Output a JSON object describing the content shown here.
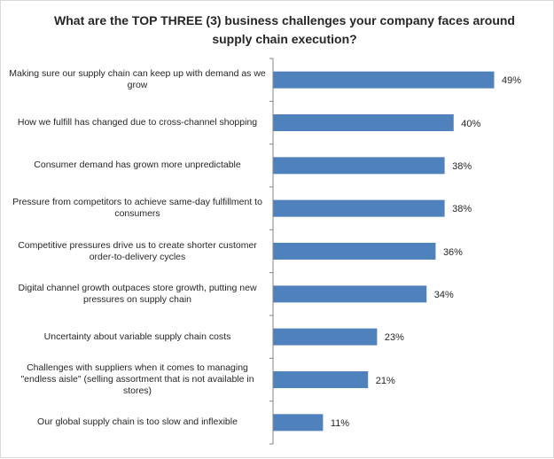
{
  "chart_data": {
    "type": "bar",
    "orientation": "horizontal",
    "title": "What are the TOP THREE (3) business challenges your company faces around supply chain execution?",
    "categories": [
      "Making sure our supply chain can keep up with demand as we grow",
      "How we fulfill has changed due to cross-channel shopping",
      "Consumer demand has grown more unpredictable",
      "Pressure from competitors to achieve same-day fulfillment to consumers",
      "Competitive pressures drive us to create shorter customer order-to-delivery cycles",
      "Digital channel growth outpaces store growth, putting new pressures on supply chain",
      "Uncertainty about variable supply chain costs",
      "Challenges with suppliers when it comes to managing \"endless aisle\" (selling assortment that is not available in stores)",
      "Our global supply chain is too slow and inflexible"
    ],
    "values": [
      49,
      40,
      38,
      38,
      36,
      34,
      23,
      21,
      11
    ],
    "value_labels": [
      "49%",
      "40%",
      "38%",
      "38%",
      "36%",
      "34%",
      "23%",
      "21%",
      "11%"
    ],
    "xlim": [
      0,
      49
    ],
    "bar_color": "#4f81bd",
    "grid": false,
    "legend": "none"
  }
}
